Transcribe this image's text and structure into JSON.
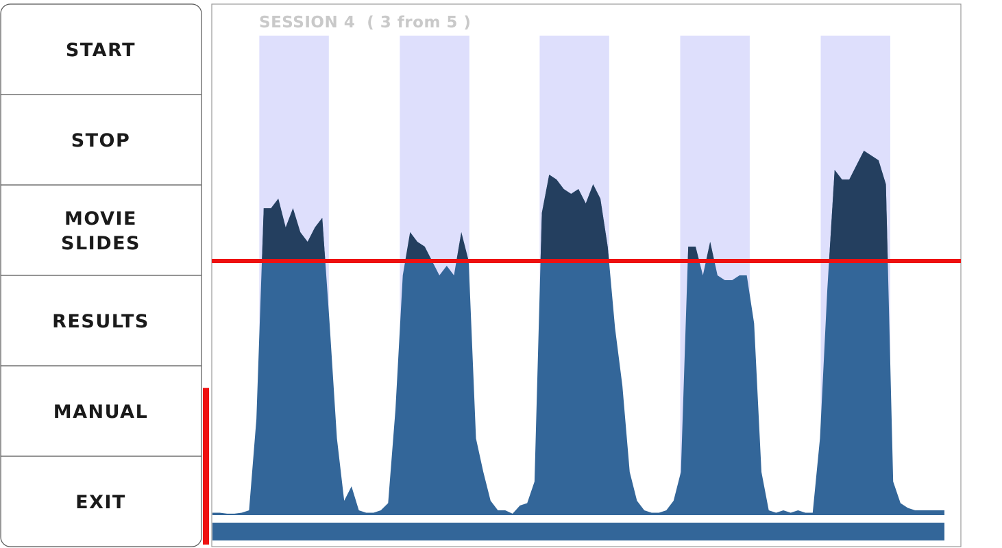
{
  "menu": {
    "buttons": [
      "START",
      "STOP",
      "MOVIE\nSLIDES",
      "RESULTS",
      "MANUAL",
      "EXIT"
    ]
  },
  "chart_data": {
    "type": "area",
    "title": "SESSION 4  ( 3 from 5 )",
    "x": [
      0,
      1,
      2,
      3,
      4,
      5,
      6,
      7,
      8,
      9,
      10,
      11,
      12,
      13,
      14,
      15,
      16,
      17,
      18,
      19,
      20,
      21,
      22,
      23,
      24,
      25,
      26,
      27,
      28,
      29,
      30,
      31,
      32,
      33,
      34,
      35,
      36,
      37,
      38,
      39,
      40,
      41,
      42,
      43,
      44,
      45,
      46,
      47,
      48,
      49,
      50,
      51,
      52,
      53,
      54,
      55,
      56,
      57,
      58,
      59,
      60,
      61,
      62,
      63,
      64,
      65,
      66,
      67,
      68,
      69,
      70,
      71,
      72,
      73,
      74,
      75,
      76,
      77,
      78,
      79,
      80,
      81,
      82,
      83,
      84,
      85,
      86,
      87,
      88,
      89,
      90,
      91,
      92,
      93,
      94,
      95,
      96,
      97,
      98,
      99,
      100
    ],
    "values": [
      0.5,
      0.5,
      0.3,
      0.3,
      0.5,
      1,
      20,
      64,
      64,
      66,
      60,
      64,
      59,
      57,
      60,
      62,
      40,
      16,
      3,
      6,
      1,
      0.5,
      0.5,
      1,
      2.5,
      22,
      50,
      59,
      57,
      56,
      53,
      50,
      52,
      50,
      59,
      53,
      16,
      9,
      3,
      1,
      1,
      0.3,
      2,
      2.5,
      7,
      63,
      71,
      70,
      68,
      67,
      68,
      65,
      69,
      66,
      56,
      39,
      27,
      9,
      3,
      1,
      0.5,
      0.5,
      1,
      3,
      9,
      56,
      56,
      50,
      57,
      50,
      49,
      49,
      50,
      50,
      40,
      9,
      1,
      0.5,
      1,
      0.5,
      1,
      0.5,
      0.5,
      16,
      47,
      72,
      70,
      70,
      73,
      76,
      75,
      74,
      69,
      7,
      2.5,
      1.5,
      1,
      1,
      1,
      1,
      1
    ],
    "color": "#336699",
    "above_color": "#243f5f",
    "xlim": [
      0,
      100
    ],
    "ylim": [
      0,
      100
    ],
    "threshold": 53,
    "threshold_color": "#ee1111",
    "bands": [
      [
        6.4,
        15.9
      ],
      [
        25.6,
        35.1
      ],
      [
        44.7,
        54.2
      ],
      [
        63.9,
        73.4
      ],
      [
        83.1,
        92.6
      ]
    ],
    "band_color": "#dedffc",
    "progress": 100,
    "level": 29
  }
}
